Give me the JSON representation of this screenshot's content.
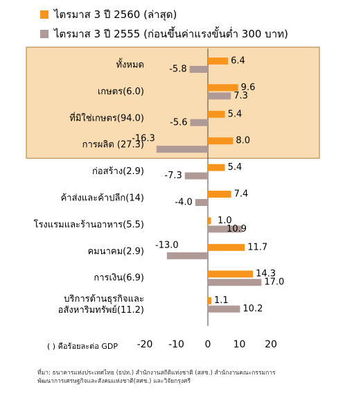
{
  "chart_data": {
    "type": "bar",
    "orientation": "horizontal",
    "categories": [
      "ทั้งหมด",
      "เกษตร(6.0)",
      "ที่มิใช่เกษตร(94.0)",
      "การผลิต (27.3)",
      "ก่อสร้าง(2.9)",
      "ค้าส่งและค้าปลีก(14)",
      "โรงแรมและร้านอาหาร(5.5)",
      "คมนาคม(2.9)",
      "การเงิน(6.9)",
      [
        "บริการด้านธุรกิจและ",
        "อสังหาริมทรัพย์(11.2)"
      ]
    ],
    "series": [
      {
        "name": "ไตรมาส 3 ปี 2560 (ล่าสุด)",
        "color": "#F7941D",
        "values": [
          6.4,
          9.6,
          5.4,
          8.0,
          5.4,
          7.4,
          1.0,
          11.7,
          14.3,
          1.1
        ],
        "labels": [
          "6.4",
          "9.6",
          "5.4",
          "8.0",
          "5.4",
          "7.4",
          "1.0",
          "11.7",
          "14.3",
          "1.1"
        ]
      },
      {
        "name": "ไตรมาส 3 ปี 2555 (ก่อนขึ้นค่าแรงขั้นต่ำ 300 บาท)",
        "color": "#B09A98",
        "values": [
          -5.8,
          7.3,
          -5.6,
          -16.3,
          -7.3,
          -4.0,
          10.9,
          -13.0,
          17.0,
          10.2
        ],
        "labels": [
          "-5.8",
          "7.3",
          "-5.6",
          "-16.3",
          "-7.3",
          "-4.0",
          "10.9",
          "-13.0",
          "17.0",
          "10.2"
        ]
      }
    ],
    "xlim": [
      -20,
      20
    ],
    "xticks": [
      -20,
      -10,
      0,
      10,
      20
    ],
    "xtick_labels": [
      "-20",
      "-10",
      "0",
      "10",
      "20"
    ],
    "grid": false,
    "highlight": {
      "categories": [
        0,
        1,
        2,
        3
      ],
      "fill": "#F9DCB1",
      "stroke": "#B07A30"
    },
    "legend_position": "top-left"
  },
  "note": "(   )  คือร้อยละต่อ GDP",
  "source": "ที่มา: ธนาคารแห่งประเทศไทย (ธปท.) สำนักงานสถิติแห่งชาติ (สสช.) สำนักงานคณะกรรมการ\n     พัฒนาการเศรษฐกิจและสังคมแห่งชาติ(สศช.) และวิจัยกรุงศรี"
}
